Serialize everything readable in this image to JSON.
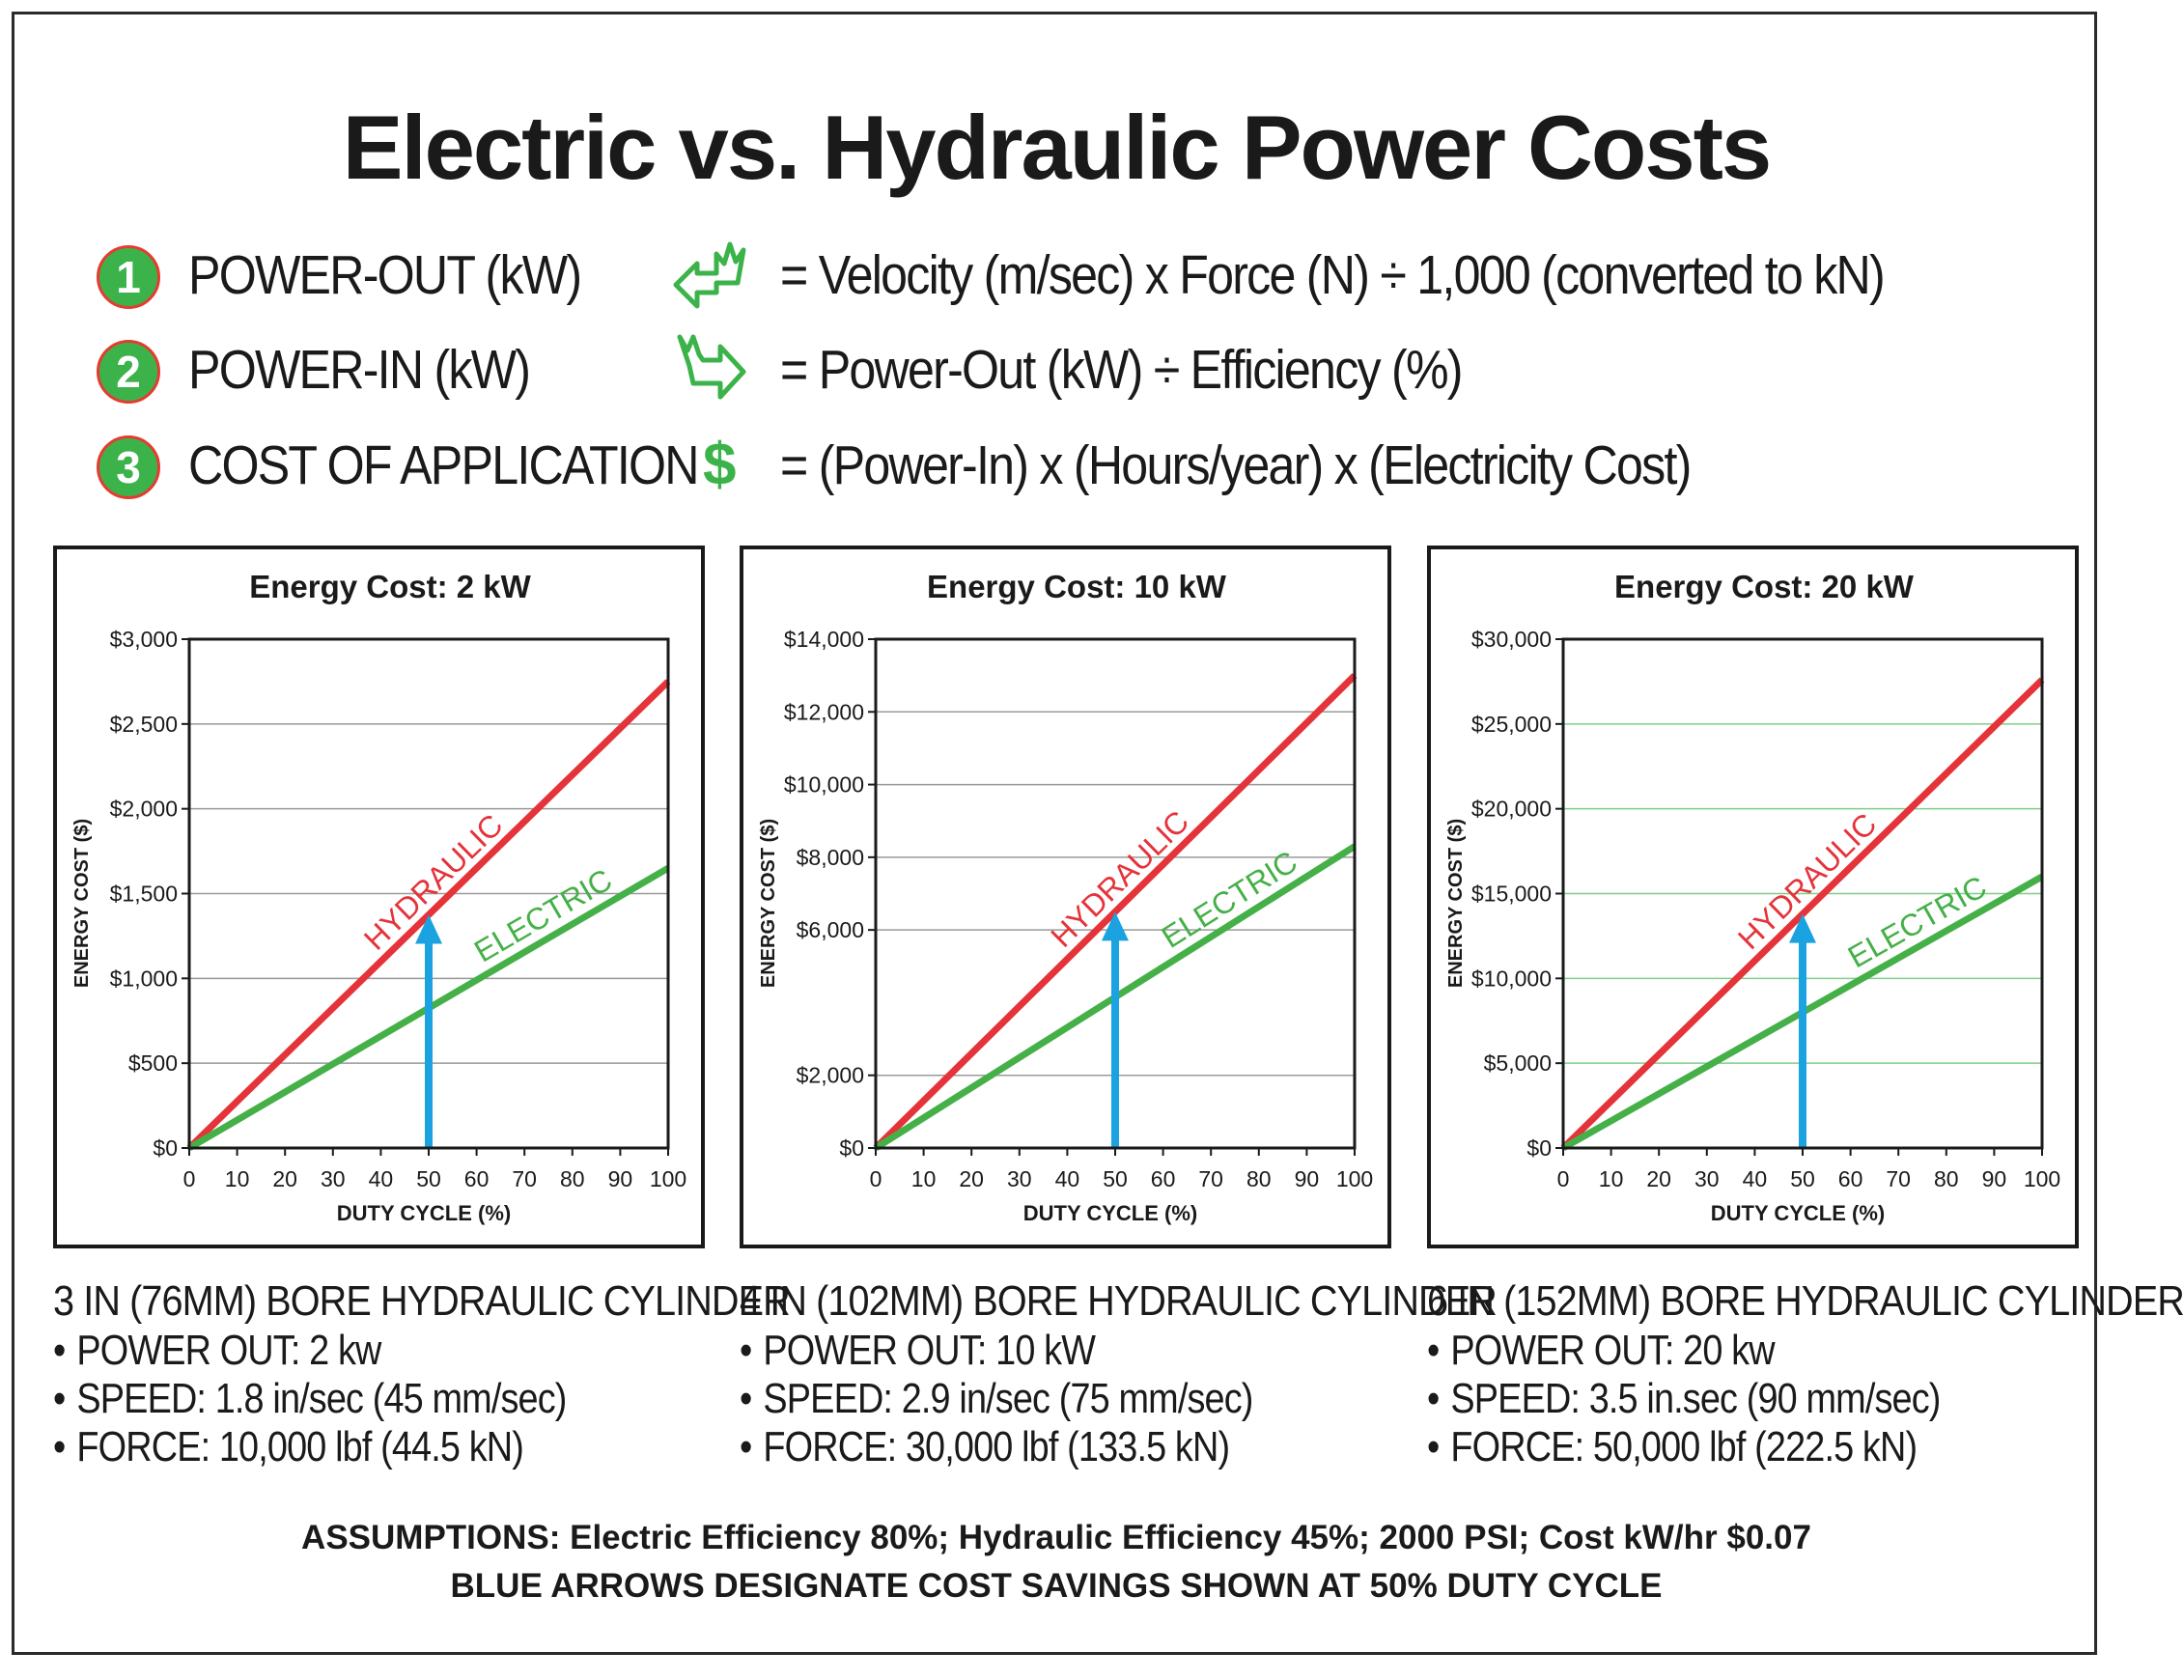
{
  "title": "Electric vs. Hydraulic Power Costs",
  "formulas": [
    {
      "number": "1",
      "label": "POWER-OUT (kW)",
      "icon": "arrow-in-icon",
      "equation": "= Velocity (m/sec) x Force (N) ÷ 1,000 (converted to kN)"
    },
    {
      "number": "2",
      "label": "POWER-IN (kW)",
      "icon": "arrow-out-icon",
      "equation": "= Power-Out (kW) ÷ Efficiency (%)"
    },
    {
      "number": "3",
      "label": "COST OF APPLICATION",
      "icon_text": "$",
      "equation": "= (Power-In) x (Hours/year) x (Electricity Cost)"
    }
  ],
  "colors": {
    "accent_green": "#3cb34a",
    "hydraulic": "#e5333a",
    "electric": "#45b048",
    "arrow": "#1aa3e0",
    "badge_border": "#e53b30"
  },
  "chart_data": [
    {
      "type": "line",
      "title": "Energy Cost: 2 kW",
      "xlabel": "DUTY CYCLE (%)",
      "ylabel": "ENERGY COST ($)",
      "x": [
        0,
        100
      ],
      "xlim": [
        0,
        100
      ],
      "ylim": [
        0,
        3000
      ],
      "x_ticks": [
        "0",
        "10",
        "20",
        "30",
        "40",
        "50",
        "60",
        "70",
        "80",
        "90",
        "100"
      ],
      "y_ticks": [
        "$0",
        "$500",
        "$1,000",
        "$1,500",
        "$2,000",
        "$2,500",
        "$3,000"
      ],
      "grid": "horizontal",
      "grid_color": "#999999",
      "series": [
        {
          "name": "HYDRAULIC",
          "values": [
            0,
            2750
          ]
        },
        {
          "name": "ELECTRIC",
          "values": [
            0,
            1650
          ]
        }
      ],
      "annotation": {
        "type": "arrow",
        "x": 50,
        "y_to": 1375
      }
    },
    {
      "type": "line",
      "title": "Energy Cost: 10 kW",
      "xlabel": "DUTY CYCLE (%)",
      "ylabel": "ENERGY COST ($)",
      "x": [
        0,
        100
      ],
      "xlim": [
        0,
        100
      ],
      "ylim": [
        0,
        14000
      ],
      "x_ticks": [
        "0",
        "10",
        "20",
        "30",
        "40",
        "50",
        "60",
        "70",
        "80",
        "90",
        "100"
      ],
      "y_ticks": [
        "$0",
        "$2,000",
        "$6,000",
        "$8,000",
        "$10,000",
        "$12,000",
        "$14,000"
      ],
      "y_tick_values": [
        0,
        2000,
        6000,
        8000,
        10000,
        12000,
        14000
      ],
      "grid": "horizontal",
      "grid_color": "#999999",
      "series": [
        {
          "name": "HYDRAULIC",
          "values": [
            0,
            13000
          ]
        },
        {
          "name": "ELECTRIC",
          "values": [
            0,
            8300
          ]
        }
      ],
      "annotation": {
        "type": "arrow",
        "x": 50,
        "y_to": 6500
      }
    },
    {
      "type": "line",
      "title": "Energy Cost: 20 kW",
      "xlabel": "DUTY CYCLE (%)",
      "ylabel": "ENERGY COST ($)",
      "x": [
        0,
        100
      ],
      "xlim": [
        0,
        100
      ],
      "ylim": [
        0,
        30000
      ],
      "x_ticks": [
        "0",
        "10",
        "20",
        "30",
        "40",
        "50",
        "60",
        "70",
        "80",
        "90",
        "100"
      ],
      "y_ticks": [
        "$0",
        "$5,000",
        "$10,000",
        "$15,000",
        "$20,000",
        "$25,000",
        "$30,000"
      ],
      "grid": "horizontal",
      "grid_color": "#7fcf86",
      "series": [
        {
          "name": "HYDRAULIC",
          "values": [
            0,
            27600
          ]
        },
        {
          "name": "ELECTRIC",
          "values": [
            0,
            16000
          ]
        }
      ],
      "annotation": {
        "type": "arrow",
        "x": 50,
        "y_to": 13800
      }
    }
  ],
  "descriptions": [
    {
      "title": "3 IN (76MM) BORE HYDRAULIC CYLINDER",
      "items": [
        "POWER OUT: 2 kw",
        "SPEED: 1.8 in/sec (45 mm/sec)",
        "FORCE: 10,000 lbf (44.5 kN)"
      ]
    },
    {
      "title": "4 IN (102MM) BORE HYDRAULIC CYLINDER",
      "items": [
        "POWER OUT: 10 kW",
        "SPEED: 2.9 in/sec (75 mm/sec)",
        "FORCE: 30,000 lbf (133.5 kN)"
      ]
    },
    {
      "title": "6 IN (152MM) BORE HYDRAULIC CYLINDER",
      "items": [
        "POWER OUT: 20 kw",
        "SPEED: 3.5 in.sec (90 mm/sec)",
        "FORCE: 50,000 lbf (222.5 kN)"
      ]
    }
  ],
  "assumptions": {
    "line1": "ASSUMPTIONS: Electric Efficiency 80%; Hydraulic Efficiency 45%; 2000 PSI; Cost kW/hr $0.07",
    "line2": "BLUE ARROWS DESIGNATE COST SAVINGS SHOWN AT 50% DUTY CYCLE"
  }
}
